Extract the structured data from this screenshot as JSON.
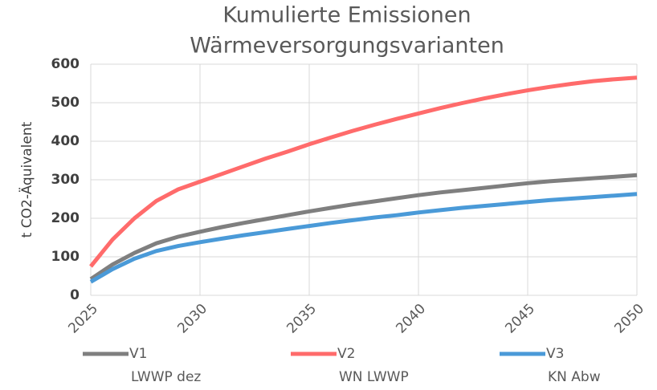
{
  "chart_data": {
    "type": "line",
    "title": [
      "Kumulierte Emissionen",
      "Wärmeversorgungsvarianten"
    ],
    "y_label": "t CO2-Äquivalent",
    "x": [
      2025,
      2026,
      2027,
      2028,
      2029,
      2030,
      2031,
      2032,
      2033,
      2034,
      2035,
      2036,
      2037,
      2038,
      2039,
      2040,
      2041,
      2042,
      2043,
      2044,
      2045,
      2046,
      2047,
      2048,
      2049,
      2050
    ],
    "series": [
      {
        "name": "V1",
        "description": "LWWP dez",
        "color": "#7f7f7f",
        "values": [
          42,
          80,
          110,
          135,
          152,
          165,
          177,
          188,
          198,
          208,
          218,
          227,
          236,
          244,
          252,
          260,
          267,
          273,
          279,
          285,
          291,
          296,
          300,
          304,
          308,
          312
        ]
      },
      {
        "name": "V2",
        "description": "WN LWWP",
        "color": "#ff6b6b",
        "values": [
          75,
          145,
          200,
          245,
          275,
          295,
          315,
          335,
          355,
          373,
          392,
          410,
          427,
          443,
          458,
          472,
          486,
          499,
          511,
          522,
          532,
          541,
          549,
          556,
          561,
          565
        ]
      },
      {
        "name": "V3",
        "description": "KN Abw",
        "color": "#4a9ad8",
        "values": [
          35,
          68,
          95,
          115,
          128,
          138,
          147,
          156,
          164,
          172,
          180,
          188,
          195,
          202,
          208,
          215,
          221,
          227,
          232,
          237,
          242,
          247,
          251,
          255,
          259,
          263
        ]
      }
    ],
    "xlim": [
      2025,
      2050
    ],
    "xticks": [
      2025,
      2030,
      2035,
      2040,
      2045,
      2050
    ],
    "ylim": [
      0,
      600
    ],
    "yticks": [
      0,
      100,
      200,
      300,
      400,
      500,
      600
    ],
    "grid": true
  }
}
